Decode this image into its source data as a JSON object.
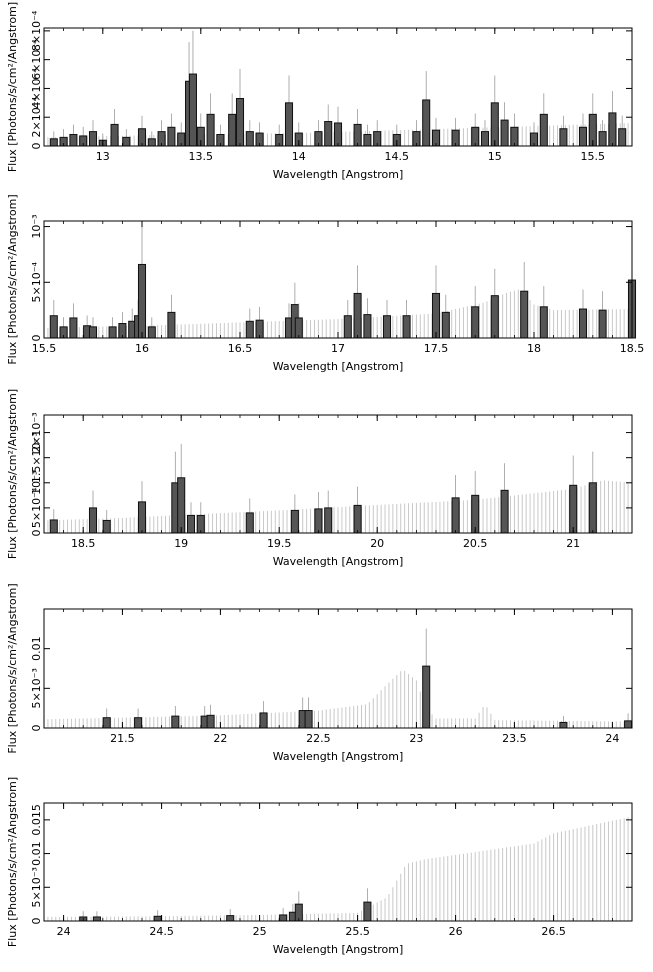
{
  "chart_data": [
    {
      "type": "histogram",
      "xlabel": "Wavelength [Angstrom]",
      "ylabel": "Flux [Photons/s/cm²/Angstrom]",
      "xlim": [
        12.7,
        15.7
      ],
      "ylim": [
        0,
        0.00082
      ],
      "xticks": [
        {
          "v": 13,
          "label": "13"
        },
        {
          "v": 13.5,
          "label": "13.5"
        },
        {
          "v": 14,
          "label": "14"
        },
        {
          "v": 14.5,
          "label": "14.5"
        },
        {
          "v": 15,
          "label": "15"
        },
        {
          "v": 15.5,
          "label": "15.5"
        }
      ],
      "yticks": [
        {
          "v": 0,
          "label": "0"
        },
        {
          "v": 0.0002,
          "label": "2×10⁻⁴"
        },
        {
          "v": 0.0004,
          "label": "4×10⁻⁴"
        },
        {
          "v": 0.0006,
          "label": "6×10⁻⁴"
        },
        {
          "v": 0.0008,
          "label": "8×10⁻⁴"
        }
      ],
      "model": [
        [
          12.7,
          6e-05
        ],
        [
          13.4,
          8e-05
        ],
        [
          14.0,
          9e-05
        ],
        [
          14.5,
          0.00011
        ],
        [
          15.0,
          0.00013
        ],
        [
          15.7,
          0.00016
        ]
      ],
      "bins": [
        [
          12.75,
          5e-05
        ],
        [
          12.8,
          6e-05
        ],
        [
          12.85,
          8e-05
        ],
        [
          12.9,
          7e-05
        ],
        [
          12.95,
          0.0001
        ],
        [
          13.0,
          4e-05
        ],
        [
          13.06,
          0.00015
        ],
        [
          13.12,
          6e-05
        ],
        [
          13.2,
          0.00012
        ],
        [
          13.25,
          5e-05
        ],
        [
          13.3,
          0.0001
        ],
        [
          13.35,
          0.00013
        ],
        [
          13.4,
          9e-05
        ],
        [
          13.44,
          0.00045
        ],
        [
          13.46,
          0.0005
        ],
        [
          13.5,
          0.00013
        ],
        [
          13.55,
          0.00022
        ],
        [
          13.6,
          8e-05
        ],
        [
          13.66,
          0.00022
        ],
        [
          13.7,
          0.00033
        ],
        [
          13.75,
          0.0001
        ],
        [
          13.8,
          9e-05
        ],
        [
          13.9,
          8e-05
        ],
        [
          13.95,
          0.0003
        ],
        [
          14.0,
          9e-05
        ],
        [
          14.1,
          0.0001
        ],
        [
          14.15,
          0.00017
        ],
        [
          14.2,
          0.00016
        ],
        [
          14.3,
          0.00015
        ],
        [
          14.35,
          8e-05
        ],
        [
          14.4,
          0.0001
        ],
        [
          14.5,
          8e-05
        ],
        [
          14.6,
          0.0001
        ],
        [
          14.65,
          0.00032
        ],
        [
          14.7,
          0.00011
        ],
        [
          14.8,
          0.00011
        ],
        [
          14.9,
          0.00013
        ],
        [
          14.95,
          0.0001
        ],
        [
          15.0,
          0.0003
        ],
        [
          15.05,
          0.00018
        ],
        [
          15.1,
          0.00013
        ],
        [
          15.2,
          9e-05
        ],
        [
          15.25,
          0.00022
        ],
        [
          15.35,
          0.00012
        ],
        [
          15.45,
          0.00013
        ],
        [
          15.5,
          0.00022
        ],
        [
          15.55,
          0.0001
        ],
        [
          15.6,
          0.00023
        ],
        [
          15.65,
          0.00012
        ]
      ]
    },
    {
      "type": "histogram",
      "xlabel": "Wavelength [Angstrom]",
      "ylabel": "Flux [Photons/s/cm²/Angstrom]",
      "xlim": [
        15.5,
        18.5
      ],
      "ylim": [
        0,
        0.00105
      ],
      "xticks": [
        {
          "v": 15.5,
          "label": "15.5"
        },
        {
          "v": 16,
          "label": "16"
        },
        {
          "v": 16.5,
          "label": "16.5"
        },
        {
          "v": 17,
          "label": "17"
        },
        {
          "v": 17.5,
          "label": "17.5"
        },
        {
          "v": 18,
          "label": "18"
        },
        {
          "v": 18.5,
          "label": "18.5"
        }
      ],
      "yticks": [
        {
          "v": 0,
          "label": "0"
        },
        {
          "v": 0.0005,
          "label": "5×10⁻⁴"
        },
        {
          "v": 0.001,
          "label": "10⁻³"
        }
      ],
      "model": [
        [
          15.5,
          9e-05
        ],
        [
          16.0,
          0.00011
        ],
        [
          16.5,
          0.00014
        ],
        [
          17.0,
          0.00017
        ],
        [
          17.5,
          0.00022
        ],
        [
          17.75,
          0.00032
        ],
        [
          17.85,
          0.0004
        ],
        [
          17.93,
          0.00044
        ],
        [
          18.0,
          0.0003
        ],
        [
          18.1,
          0.00025
        ],
        [
          18.5,
          0.00026
        ]
      ],
      "bins": [
        [
          15.55,
          0.0002
        ],
        [
          15.6,
          0.0001
        ],
        [
          15.65,
          0.00018
        ],
        [
          15.72,
          0.00011
        ],
        [
          15.75,
          0.0001
        ],
        [
          15.85,
          0.0001
        ],
        [
          15.9,
          0.00013
        ],
        [
          15.95,
          0.00015
        ],
        [
          15.98,
          0.0002
        ],
        [
          16.0,
          0.00066
        ],
        [
          16.05,
          0.0001
        ],
        [
          16.15,
          0.00023
        ],
        [
          16.55,
          0.00015
        ],
        [
          16.6,
          0.00016
        ],
        [
          16.75,
          0.00018
        ],
        [
          16.78,
          0.0003
        ],
        [
          16.8,
          0.00018
        ],
        [
          17.05,
          0.0002
        ],
        [
          17.1,
          0.0004
        ],
        [
          17.15,
          0.00021
        ],
        [
          17.25,
          0.0002
        ],
        [
          17.35,
          0.0002
        ],
        [
          17.5,
          0.0004
        ],
        [
          17.55,
          0.00023
        ],
        [
          17.7,
          0.00028
        ],
        [
          17.8,
          0.00038
        ],
        [
          17.95,
          0.00042
        ],
        [
          18.05,
          0.00028
        ],
        [
          18.25,
          0.00026
        ],
        [
          18.35,
          0.00025
        ],
        [
          18.5,
          0.00052
        ]
      ]
    },
    {
      "type": "histogram",
      "xlabel": "Wavelength [Angstrom]",
      "ylabel": "Flux [Photons/s/cm²/Angstrom]",
      "xlim": [
        18.3,
        21.3
      ],
      "ylim": [
        0,
        0.00235
      ],
      "xticks": [
        {
          "v": 18.5,
          "label": "18.5"
        },
        {
          "v": 19,
          "label": "19"
        },
        {
          "v": 19.5,
          "label": "19.5"
        },
        {
          "v": 20,
          "label": "20"
        },
        {
          "v": 20.5,
          "label": "20.5"
        },
        {
          "v": 21,
          "label": "21"
        }
      ],
      "yticks": [
        {
          "v": 0,
          "label": "0"
        },
        {
          "v": 0.0005,
          "label": "5×10⁻⁴"
        },
        {
          "v": 0.001,
          "label": "10⁻³"
        },
        {
          "v": 0.0015,
          "label": "1.5×10⁻³"
        },
        {
          "v": 0.002,
          "label": "2×10⁻³"
        }
      ],
      "model": [
        [
          18.3,
          0.00025
        ],
        [
          18.7,
          0.0003
        ],
        [
          19.0,
          0.00036
        ],
        [
          19.5,
          0.00045
        ],
        [
          20.0,
          0.00056
        ],
        [
          20.5,
          0.00066
        ],
        [
          21.0,
          0.00088
        ],
        [
          21.15,
          0.00105
        ],
        [
          21.3,
          0.001
        ]
      ],
      "bins": [
        [
          18.35,
          0.00026
        ],
        [
          18.55,
          0.0005
        ],
        [
          18.62,
          0.00025
        ],
        [
          18.8,
          0.00062
        ],
        [
          18.97,
          0.001
        ],
        [
          19.0,
          0.0011
        ],
        [
          19.05,
          0.00035
        ],
        [
          19.1,
          0.00035
        ],
        [
          19.35,
          0.0004
        ],
        [
          19.58,
          0.00045
        ],
        [
          19.7,
          0.00048
        ],
        [
          19.75,
          0.0005
        ],
        [
          19.9,
          0.00055
        ],
        [
          20.4,
          0.0007
        ],
        [
          20.5,
          0.00075
        ],
        [
          20.65,
          0.00085
        ],
        [
          21.0,
          0.00095
        ],
        [
          21.1,
          0.001
        ]
      ]
    },
    {
      "type": "histogram",
      "xlabel": "Wavelength [Angstrom]",
      "ylabel": "Flux [Photons/s/cm²/Angstrom]",
      "xlim": [
        21.1,
        24.1
      ],
      "ylim": [
        0,
        0.015
      ],
      "xticks": [
        {
          "v": 21.5,
          "label": "21.5"
        },
        {
          "v": 22,
          "label": "22"
        },
        {
          "v": 22.5,
          "label": "22.5"
        },
        {
          "v": 23,
          "label": "23"
        },
        {
          "v": 23.5,
          "label": "23.5"
        },
        {
          "v": 24,
          "label": "24"
        }
      ],
      "yticks": [
        {
          "v": 0,
          "label": "0"
        },
        {
          "v": 0.005,
          "label": "5×10⁻³"
        },
        {
          "v": 0.01,
          "label": "0.01"
        }
      ],
      "model": [
        [
          21.1,
          0.0011
        ],
        [
          21.5,
          0.0013
        ],
        [
          22.0,
          0.0016
        ],
        [
          22.5,
          0.0022
        ],
        [
          22.75,
          0.003
        ],
        [
          22.85,
          0.0055
        ],
        [
          22.93,
          0.0074
        ],
        [
          23.0,
          0.006
        ],
        [
          23.05,
          0.0025
        ],
        [
          23.1,
          0.0012
        ],
        [
          23.3,
          0.0012
        ],
        [
          23.35,
          0.003
        ],
        [
          23.4,
          0.001
        ],
        [
          24.1,
          0.0008
        ]
      ],
      "bins": [
        [
          21.42,
          0.0013
        ],
        [
          21.58,
          0.0013
        ],
        [
          21.77,
          0.0015
        ],
        [
          21.92,
          0.0015
        ],
        [
          21.95,
          0.0016
        ],
        [
          22.22,
          0.0019
        ],
        [
          22.42,
          0.0022
        ],
        [
          22.45,
          0.0022
        ],
        [
          23.05,
          0.0078
        ],
        [
          23.75,
          0.0007
        ],
        [
          24.08,
          0.0009
        ]
      ]
    },
    {
      "type": "histogram",
      "xlabel": "Wavelength [Angstrom]",
      "ylabel": "Flux [Photons/s/cm²/Angstrom]",
      "xlim": [
        23.9,
        26.9
      ],
      "ylim": [
        0,
        0.0175
      ],
      "xticks": [
        {
          "v": 24,
          "label": "24"
        },
        {
          "v": 24.5,
          "label": "24.5"
        },
        {
          "v": 25,
          "label": "25"
        },
        {
          "v": 25.5,
          "label": "25.5"
        },
        {
          "v": 26,
          "label": "26"
        },
        {
          "v": 26.5,
          "label": "26.5"
        }
      ],
      "yticks": [
        {
          "v": 0,
          "label": "0"
        },
        {
          "v": 0.005,
          "label": "5×10⁻³"
        },
        {
          "v": 0.01,
          "label": "0.01"
        },
        {
          "v": 0.015,
          "label": "0.015"
        }
      ],
      "model": [
        [
          23.9,
          0.0006
        ],
        [
          24.5,
          0.0007
        ],
        [
          25.0,
          0.0009
        ],
        [
          25.5,
          0.0012
        ],
        [
          25.65,
          0.0035
        ],
        [
          25.75,
          0.0085
        ],
        [
          25.85,
          0.0092
        ],
        [
          26.0,
          0.0098
        ],
        [
          26.4,
          0.0115
        ],
        [
          26.5,
          0.013
        ],
        [
          26.9,
          0.0155
        ]
      ],
      "bins": [
        [
          24.1,
          0.0006
        ],
        [
          24.17,
          0.0006
        ],
        [
          24.48,
          0.0007
        ],
        [
          24.85,
          0.0008
        ],
        [
          25.12,
          0.0009
        ],
        [
          25.17,
          0.0013
        ],
        [
          25.2,
          0.0025
        ],
        [
          25.55,
          0.0028
        ]
      ]
    }
  ]
}
